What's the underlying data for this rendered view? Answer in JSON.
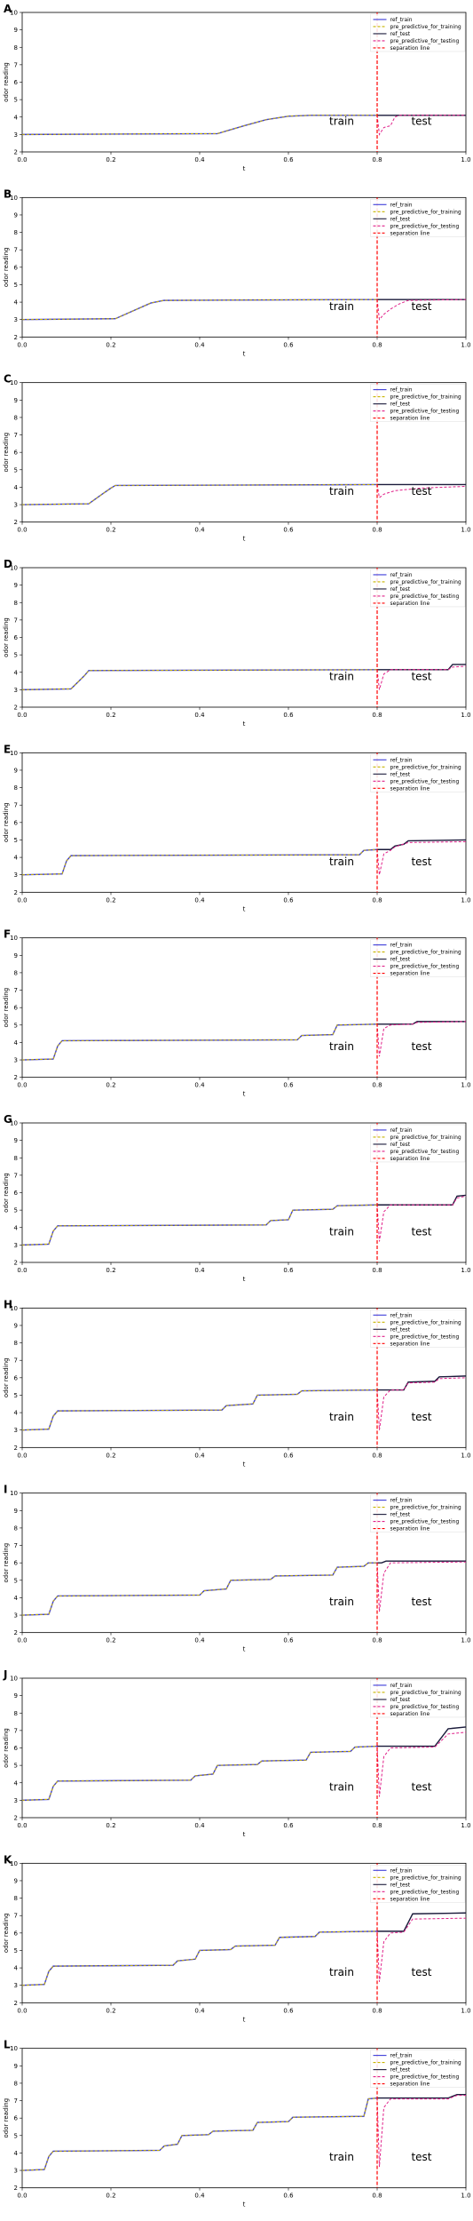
{
  "legend_entries": [
    {
      "label": "ref_train",
      "color": "#3b3bd9",
      "dash": "solid"
    },
    {
      "label": "pre_predictive_for_training",
      "color": "#c8b400",
      "dash": "dashed"
    },
    {
      "label": "ref_test",
      "color": "#1a1a3a",
      "dash": "solid"
    },
    {
      "label": "pre_predictive_for_testing",
      "color": "#e0208a",
      "dash": "dashed"
    },
    {
      "label": "separation line",
      "color": "#ff0000",
      "dash": "dashed"
    }
  ],
  "region_labels": {
    "train": "train",
    "test": "test"
  },
  "axis_text": {
    "xlabel": "t",
    "ylabel": "odor reading"
  },
  "chart_data": [
    {
      "type": "line",
      "panel": "A",
      "xlim": [
        0,
        1
      ],
      "ylim": [
        2,
        10
      ],
      "xticks": [
        "0.0",
        "0.2",
        "0.4",
        "0.6",
        "0.8",
        "1.0"
      ],
      "yticks": [
        "2",
        "3",
        "4",
        "5",
        "6",
        "7",
        "8",
        "9",
        "10"
      ],
      "separation_x": 0.8,
      "train": {
        "x": [
          0,
          0.44,
          0.5,
          0.55,
          0.6,
          0.65,
          0.8
        ],
        "y": [
          3,
          3.05,
          3.5,
          3.85,
          4.05,
          4.1,
          4.1
        ]
      },
      "test_ref": {
        "x": [
          0.8,
          1.0
        ],
        "y": [
          4.1,
          4.1
        ]
      },
      "test_pred": {
        "x": [
          0.8,
          0.805,
          0.815,
          0.83,
          0.84,
          0.85,
          1.0
        ],
        "y": [
          4.1,
          3.0,
          3.4,
          3.5,
          4.0,
          4.1,
          4.1
        ]
      }
    },
    {
      "type": "line",
      "panel": "B",
      "xlim": [
        0,
        1
      ],
      "ylim": [
        2,
        10
      ],
      "xticks": [
        "0.0",
        "0.2",
        "0.4",
        "0.6",
        "0.8",
        "1.0"
      ],
      "yticks": [
        "2",
        "3",
        "4",
        "5",
        "6",
        "7",
        "8",
        "9",
        "10"
      ],
      "separation_x": 0.8,
      "train": {
        "x": [
          0,
          0.21,
          0.25,
          0.29,
          0.32,
          0.8
        ],
        "y": [
          3,
          3.05,
          3.5,
          3.95,
          4.1,
          4.15
        ]
      },
      "test_ref": {
        "x": [
          0.8,
          1.0
        ],
        "y": [
          4.15,
          4.15
        ]
      },
      "test_pred": {
        "x": [
          0.8,
          0.805,
          0.815,
          0.83,
          0.85,
          0.87,
          1.0
        ],
        "y": [
          4.15,
          3.0,
          3.3,
          3.6,
          3.9,
          4.1,
          4.15
        ]
      }
    },
    {
      "type": "line",
      "panel": "C",
      "xlim": [
        0,
        1
      ],
      "ylim": [
        2,
        10
      ],
      "xticks": [
        "0.0",
        "0.2",
        "0.4",
        "0.6",
        "0.8",
        "1.0"
      ],
      "yticks": [
        "2",
        "3",
        "4",
        "5",
        "6",
        "7",
        "8",
        "9",
        "10"
      ],
      "separation_x": 0.8,
      "train": {
        "x": [
          0,
          0.15,
          0.18,
          0.2,
          0.21,
          0.8
        ],
        "y": [
          3,
          3.05,
          3.6,
          3.95,
          4.1,
          4.15
        ]
      },
      "test_ref": {
        "x": [
          0.8,
          1.0
        ],
        "y": [
          4.15,
          4.15
        ]
      },
      "test_pred": {
        "x": [
          0.8,
          0.805,
          0.815,
          0.84,
          0.9,
          1.0
        ],
        "y": [
          4.15,
          3.4,
          3.6,
          3.8,
          3.95,
          4.05
        ]
      }
    },
    {
      "type": "line",
      "panel": "D",
      "xlim": [
        0,
        1
      ],
      "ylim": [
        2,
        10
      ],
      "xticks": [
        "0.0",
        "0.2",
        "0.4",
        "0.6",
        "0.8",
        "1.0"
      ],
      "yticks": [
        "2",
        "3",
        "4",
        "5",
        "6",
        "7",
        "8",
        "9",
        "10"
      ],
      "separation_x": 0.8,
      "train": {
        "x": [
          0,
          0.11,
          0.14,
          0.15,
          0.8
        ],
        "y": [
          3,
          3.05,
          3.8,
          4.1,
          4.15
        ]
      },
      "test_ref": {
        "x": [
          0.8,
          0.96,
          0.97,
          1.0
        ],
        "y": [
          4.15,
          4.15,
          4.45,
          4.45
        ]
      },
      "test_pred": {
        "x": [
          0.8,
          0.805,
          0.815,
          0.83,
          0.96,
          0.97,
          1.0
        ],
        "y": [
          4.15,
          3.0,
          3.9,
          4.15,
          4.15,
          4.3,
          4.35
        ]
      }
    },
    {
      "type": "line",
      "panel": "E",
      "xlim": [
        0,
        1
      ],
      "ylim": [
        2,
        10
      ],
      "xticks": [
        "0.0",
        "0.2",
        "0.4",
        "0.6",
        "0.8",
        "1.0"
      ],
      "yticks": [
        "2",
        "3",
        "4",
        "5",
        "6",
        "7",
        "8",
        "9",
        "10"
      ],
      "separation_x": 0.8,
      "train": {
        "x": [
          0,
          0.09,
          0.1,
          0.11,
          0.76,
          0.77,
          0.8
        ],
        "y": [
          3,
          3.05,
          3.8,
          4.1,
          4.15,
          4.4,
          4.45
        ]
      },
      "test_ref": {
        "x": [
          0.8,
          0.83,
          0.84,
          0.86,
          0.87,
          1.0
        ],
        "y": [
          4.45,
          4.45,
          4.65,
          4.75,
          4.95,
          5.0
        ]
      },
      "test_pred": {
        "x": [
          0.8,
          0.805,
          0.815,
          0.83,
          0.84,
          0.87,
          1.0
        ],
        "y": [
          4.45,
          3.0,
          4.2,
          4.4,
          4.6,
          4.85,
          4.9
        ]
      }
    },
    {
      "type": "line",
      "panel": "F",
      "xlim": [
        0,
        1
      ],
      "ylim": [
        2,
        10
      ],
      "xticks": [
        "0.0",
        "0.2",
        "0.4",
        "0.6",
        "0.8",
        "1.0"
      ],
      "yticks": [
        "2",
        "3",
        "4",
        "5",
        "6",
        "7",
        "8",
        "9",
        "10"
      ],
      "separation_x": 0.8,
      "train": {
        "x": [
          0,
          0.07,
          0.08,
          0.09,
          0.62,
          0.63,
          0.7,
          0.71,
          0.8
        ],
        "y": [
          3,
          3.05,
          3.8,
          4.1,
          4.15,
          4.4,
          4.45,
          5.0,
          5.05
        ]
      },
      "test_ref": {
        "x": [
          0.8,
          0.88,
          0.89,
          1.0
        ],
        "y": [
          5.05,
          5.05,
          5.2,
          5.2
        ]
      },
      "test_pred": {
        "x": [
          0.8,
          0.805,
          0.815,
          0.83,
          0.88,
          0.89,
          1.0
        ],
        "y": [
          5.05,
          3.2,
          4.8,
          5.0,
          5.05,
          5.15,
          5.2
        ]
      }
    },
    {
      "type": "line",
      "panel": "G",
      "xlim": [
        0,
        1
      ],
      "ylim": [
        2,
        10
      ],
      "xticks": [
        "0.0",
        "0.2",
        "0.4",
        "0.6",
        "0.8",
        "1.0"
      ],
      "yticks": [
        "2",
        "3",
        "4",
        "5",
        "6",
        "7",
        "8",
        "9",
        "10"
      ],
      "separation_x": 0.8,
      "train": {
        "x": [
          0,
          0.06,
          0.07,
          0.08,
          0.55,
          0.56,
          0.6,
          0.61,
          0.7,
          0.71,
          0.8
        ],
        "y": [
          3,
          3.05,
          3.8,
          4.1,
          4.15,
          4.4,
          4.45,
          5.0,
          5.05,
          5.25,
          5.3
        ]
      },
      "test_ref": {
        "x": [
          0.8,
          0.97,
          0.98,
          1.0
        ],
        "y": [
          5.3,
          5.3,
          5.8,
          5.85
        ]
      },
      "test_pred": {
        "x": [
          0.8,
          0.805,
          0.815,
          0.83,
          0.97,
          0.98,
          1.0
        ],
        "y": [
          5.3,
          3.2,
          4.9,
          5.3,
          5.3,
          5.7,
          5.8
        ]
      }
    },
    {
      "type": "line",
      "panel": "H",
      "xlim": [
        0,
        1
      ],
      "ylim": [
        2,
        10
      ],
      "xticks": [
        "0.0",
        "0.2",
        "0.4",
        "0.6",
        "0.8",
        "1.0"
      ],
      "yticks": [
        "2",
        "3",
        "4",
        "5",
        "6",
        "7",
        "8",
        "9",
        "10"
      ],
      "separation_x": 0.8,
      "train": {
        "x": [
          0,
          0.06,
          0.07,
          0.08,
          0.45,
          0.46,
          0.52,
          0.53,
          0.62,
          0.63,
          0.8
        ],
        "y": [
          3,
          3.05,
          3.8,
          4.1,
          4.15,
          4.4,
          4.5,
          5.0,
          5.05,
          5.25,
          5.3
        ]
      },
      "test_ref": {
        "x": [
          0.8,
          0.86,
          0.87,
          0.93,
          0.94,
          1.0
        ],
        "y": [
          5.3,
          5.3,
          5.75,
          5.8,
          6.05,
          6.1
        ]
      },
      "test_pred": {
        "x": [
          0.8,
          0.805,
          0.815,
          0.83,
          0.86,
          0.87,
          0.93,
          0.94,
          1.0
        ],
        "y": [
          5.3,
          3.0,
          4.9,
          5.3,
          5.3,
          5.7,
          5.75,
          5.95,
          6.0
        ]
      }
    },
    {
      "type": "line",
      "panel": "I",
      "xlim": [
        0,
        1
      ],
      "ylim": [
        2,
        10
      ],
      "xticks": [
        "0.0",
        "0.2",
        "0.4",
        "0.6",
        "0.8",
        "1.0"
      ],
      "yticks": [
        "2",
        "3",
        "4",
        "5",
        "6",
        "7",
        "8",
        "9",
        "10"
      ],
      "separation_x": 0.8,
      "train": {
        "x": [
          0,
          0.06,
          0.07,
          0.08,
          0.4,
          0.41,
          0.46,
          0.47,
          0.56,
          0.57,
          0.7,
          0.71,
          0.77,
          0.78,
          0.8
        ],
        "y": [
          3,
          3.05,
          3.8,
          4.1,
          4.15,
          4.4,
          4.5,
          5.0,
          5.05,
          5.25,
          5.3,
          5.75,
          5.8,
          6.0,
          6.0
        ]
      },
      "test_ref": {
        "x": [
          0.8,
          0.81,
          0.82,
          1.0
        ],
        "y": [
          6.0,
          6.0,
          6.1,
          6.1
        ]
      },
      "test_pred": {
        "x": [
          0.8,
          0.805,
          0.815,
          0.83,
          1.0
        ],
        "y": [
          6.0,
          3.2,
          5.4,
          6.0,
          6.05
        ]
      }
    },
    {
      "type": "line",
      "panel": "J",
      "xlim": [
        0,
        1
      ],
      "ylim": [
        2,
        10
      ],
      "xticks": [
        "0.0",
        "0.2",
        "0.4",
        "0.6",
        "0.8",
        "1.0"
      ],
      "yticks": [
        "2",
        "3",
        "4",
        "5",
        "6",
        "7",
        "8",
        "9",
        "10"
      ],
      "separation_x": 0.8,
      "train": {
        "x": [
          0,
          0.06,
          0.07,
          0.08,
          0.38,
          0.39,
          0.43,
          0.44,
          0.53,
          0.54,
          0.64,
          0.65,
          0.74,
          0.75,
          0.8
        ],
        "y": [
          3,
          3.05,
          3.8,
          4.1,
          4.15,
          4.4,
          4.5,
          5.0,
          5.05,
          5.25,
          5.3,
          5.75,
          5.8,
          6.05,
          6.1
        ]
      },
      "test_ref": {
        "x": [
          0.8,
          0.93,
          0.96,
          1.0
        ],
        "y": [
          6.1,
          6.1,
          7.1,
          7.2
        ]
      },
      "test_pred": {
        "x": [
          0.8,
          0.805,
          0.815,
          0.83,
          0.93,
          0.96,
          1.0
        ],
        "y": [
          6.1,
          3.2,
          5.5,
          6.0,
          6.05,
          6.8,
          6.9
        ]
      }
    },
    {
      "type": "line",
      "panel": "K",
      "xlim": [
        0,
        1
      ],
      "ylim": [
        2,
        10
      ],
      "xticks": [
        "0.0",
        "0.2",
        "0.4",
        "0.6",
        "0.8",
        "1.0"
      ],
      "yticks": [
        "2",
        "3",
        "4",
        "5",
        "6",
        "7",
        "8",
        "9",
        "10"
      ],
      "separation_x": 0.8,
      "train": {
        "x": [
          0,
          0.05,
          0.06,
          0.07,
          0.34,
          0.35,
          0.39,
          0.4,
          0.47,
          0.48,
          0.57,
          0.58,
          0.66,
          0.67,
          0.8
        ],
        "y": [
          3,
          3.05,
          3.8,
          4.1,
          4.15,
          4.4,
          4.5,
          5.0,
          5.05,
          5.25,
          5.3,
          5.75,
          5.8,
          6.05,
          6.1
        ]
      },
      "test_ref": {
        "x": [
          0.8,
          0.86,
          0.88,
          1.0
        ],
        "y": [
          6.1,
          6.1,
          7.1,
          7.15
        ]
      },
      "test_pred": {
        "x": [
          0.8,
          0.805,
          0.815,
          0.83,
          0.86,
          0.88,
          1.0
        ],
        "y": [
          6.1,
          3.2,
          5.5,
          6.0,
          6.05,
          6.8,
          6.85
        ]
      }
    },
    {
      "type": "line",
      "panel": "L",
      "xlim": [
        0,
        1
      ],
      "ylim": [
        2,
        10
      ],
      "xticks": [
        "0.0",
        "0.2",
        "0.4",
        "0.6",
        "0.8",
        "1.0"
      ],
      "yticks": [
        "2",
        "3",
        "4",
        "5",
        "6",
        "7",
        "8",
        "9",
        "10"
      ],
      "separation_x": 0.8,
      "train": {
        "x": [
          0,
          0.05,
          0.06,
          0.07,
          0.31,
          0.32,
          0.35,
          0.36,
          0.42,
          0.43,
          0.52,
          0.53,
          0.6,
          0.61,
          0.77,
          0.78,
          0.8
        ],
        "y": [
          3,
          3.05,
          3.8,
          4.1,
          4.15,
          4.4,
          4.5,
          5.0,
          5.05,
          5.25,
          5.3,
          5.75,
          5.8,
          6.05,
          6.1,
          7.1,
          7.15
        ]
      },
      "test_ref": {
        "x": [
          0.8,
          0.96,
          0.98,
          1.0
        ],
        "y": [
          7.15,
          7.15,
          7.35,
          7.35
        ]
      },
      "test_pred": {
        "x": [
          0.8,
          0.805,
          0.815,
          0.83,
          0.96,
          0.98,
          1.0
        ],
        "y": [
          7.15,
          3.2,
          6.6,
          7.1,
          7.1,
          7.3,
          7.3
        ]
      }
    }
  ]
}
